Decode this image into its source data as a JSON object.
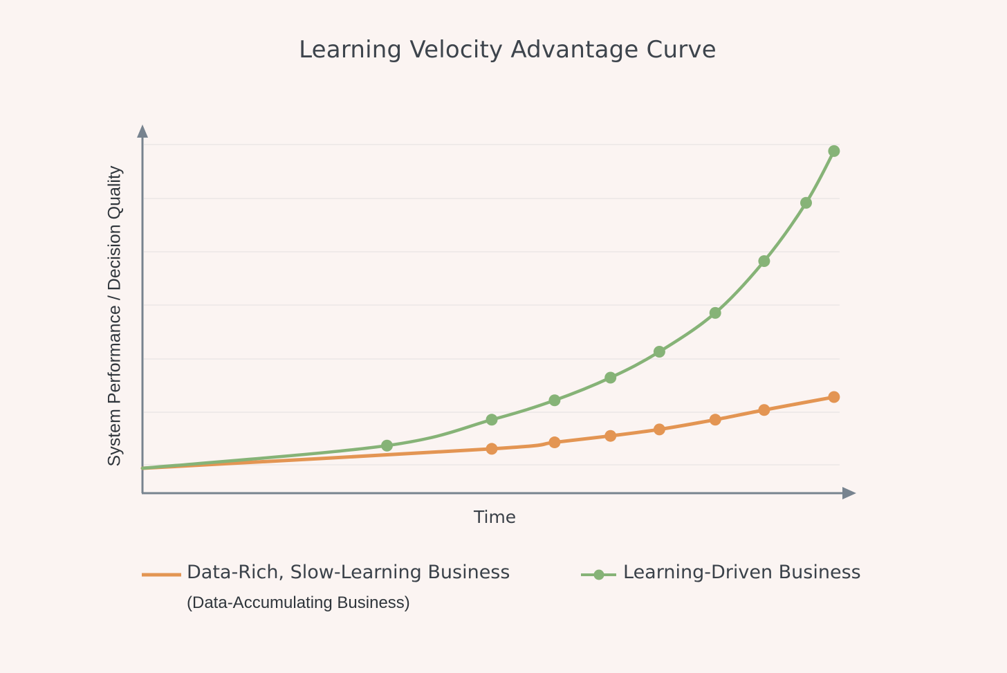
{
  "chart_data": {
    "type": "line",
    "title": "Learning Velocity Advantage Curve",
    "xlabel": "Time",
    "ylabel": "System Performance / Decision Quality",
    "x_ticks_labeled": false,
    "y_ticks_labeled": false,
    "grid": {
      "horizontal": true,
      "vertical": false,
      "lines": 7
    },
    "ylim": [
      0,
      100
    ],
    "xlim": [
      0,
      100
    ],
    "legend_position": "bottom",
    "series": [
      {
        "name": "Data-Rich, Slow-Learning Business",
        "subtitle": "(Data-Accumulating Business)",
        "color": "#e39553",
        "markers": true,
        "x": [
          0,
          50,
          59,
          67,
          74,
          82,
          89,
          99
        ],
        "y": [
          0,
          6,
          8,
          10,
          12,
          15,
          18,
          22
        ]
      },
      {
        "name": "Learning-Driven Business",
        "color": "#86b377",
        "markers": true,
        "x": [
          0,
          35,
          50,
          59,
          67,
          74,
          82,
          89,
          95,
          99
        ],
        "y": [
          0,
          7,
          15,
          21,
          28,
          36,
          48,
          64,
          82,
          98
        ]
      }
    ]
  },
  "legend": {
    "items": [
      {
        "label": "Data-Rich, Slow-Learning Business",
        "sub": "(Data-Accumulating Business)",
        "color": "#e39553"
      },
      {
        "label": "Learning-Driven Business",
        "color": "#86b377"
      }
    ]
  },
  "colors": {
    "background": "#fbf4f2",
    "axis": "#77838f",
    "grid": "#ebe6e6",
    "orange": "#e39553",
    "green": "#86b377"
  }
}
